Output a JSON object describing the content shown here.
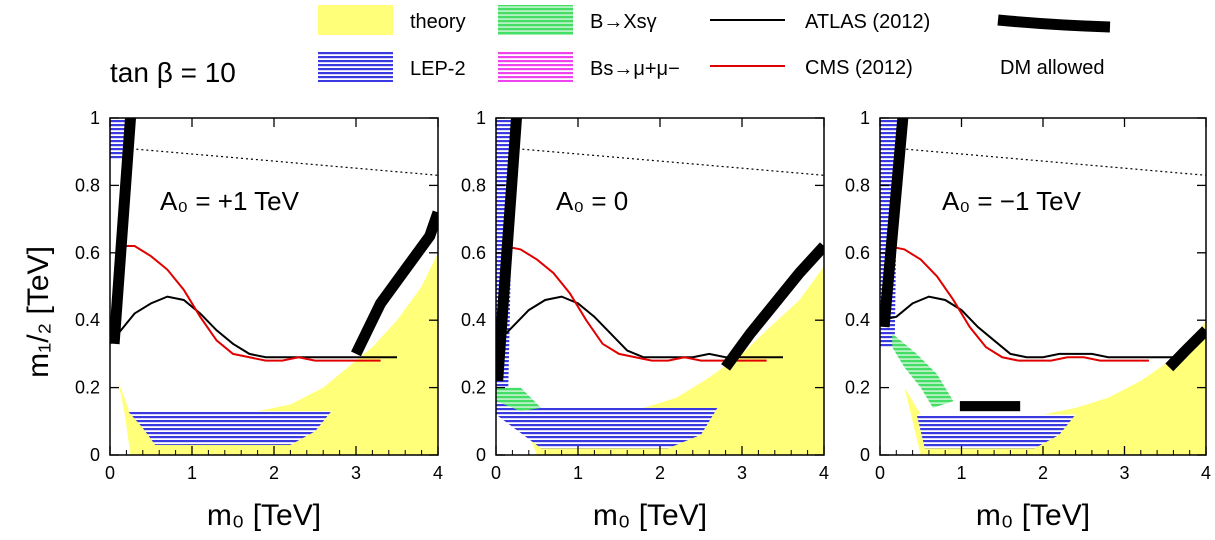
{
  "figure": {
    "tan_beta_label": "tan β = 10",
    "legend": [
      {
        "label": "theory",
        "kind": "fill",
        "color": "#ffff7a",
        "hatch": false
      },
      {
        "label": "LEP-2",
        "kind": "fill",
        "color": "#3a3ae0",
        "hatch": true
      },
      {
        "label": "B→Xsγ",
        "kind": "fill",
        "color": "#44dd66",
        "hatch": true
      },
      {
        "label": "Bs→μ+μ−",
        "kind": "fill",
        "color": "#ee44ee",
        "hatch": true
      },
      {
        "label": "ATLAS (2012)",
        "kind": "line",
        "color": "#000000"
      },
      {
        "label": "CMS (2012)",
        "kind": "line",
        "color": "#e00000"
      },
      {
        "label": "DM allowed",
        "kind": "thick",
        "color": "#000000"
      }
    ],
    "colors": {
      "theory": "#ffff7a",
      "lep": "#3a3ae0",
      "bsg": "#44dd66",
      "bsmumu": "#ee44ee",
      "atlas": "#000000",
      "cms": "#e00000",
      "dm": "#000000"
    }
  },
  "chart_data": [
    {
      "type": "area",
      "panel_label": "A₀ = +1 TeV",
      "xlabel": "m₀ [TeV]",
      "ylabel": "m₁/₂ [TeV]",
      "xlim": [
        0,
        4
      ],
      "ylim": [
        0,
        1
      ],
      "xticks": [
        "0",
        "1",
        "2",
        "3",
        "4"
      ],
      "yticks": [
        "0",
        "0.2",
        "0.4",
        "0.6",
        "0.8",
        "1"
      ],
      "theory_boundary": [
        [
          0,
          0.28
        ],
        [
          0.1,
          0.22
        ],
        [
          0.18,
          0.12
        ],
        [
          0.25,
          0
        ],
        [
          4,
          0
        ],
        [
          4,
          0.6
        ],
        [
          3.8,
          0.5
        ],
        [
          3.5,
          0.4
        ],
        [
          3.2,
          0.32
        ],
        [
          3,
          0.28
        ],
        [
          2.6,
          0.2
        ],
        [
          2.2,
          0.15
        ],
        [
          1.8,
          0.13
        ],
        [
          0.25,
          0.12
        ],
        [
          0.1,
          0.22
        ],
        [
          0,
          0.28
        ]
      ],
      "lep_region": [
        [
          0,
          0.88
        ],
        [
          0,
          1
        ],
        [
          0.25,
          1
        ],
        [
          0.22,
          0.88
        ]
      ],
      "lep_bottom": [
        [
          0.22,
          0.13
        ],
        [
          2.7,
          0.13
        ],
        [
          2.5,
          0.07
        ],
        [
          2.2,
          0.03
        ],
        [
          0.55,
          0.03
        ],
        [
          0.4,
          0.08
        ]
      ],
      "bsg_region": [],
      "atlas": {
        "x": [
          0,
          0.1,
          0.3,
          0.5,
          0.7,
          0.9,
          1.1,
          1.3,
          1.5,
          1.7,
          1.9,
          2.1,
          2.3,
          2.5,
          2.7,
          3,
          3.2,
          3.5
        ],
        "y": [
          0.33,
          0.36,
          0.42,
          0.45,
          0.47,
          0.46,
          0.42,
          0.37,
          0.33,
          0.3,
          0.29,
          0.29,
          0.29,
          0.29,
          0.29,
          0.29,
          0.29,
          0.29
        ]
      },
      "cms": {
        "x": [
          0.1,
          0.3,
          0.5,
          0.7,
          0.9,
          1.1,
          1.3,
          1.5,
          1.7,
          1.9,
          2.1,
          2.3,
          2.5,
          2.7,
          3,
          3.3
        ],
        "y": [
          0.62,
          0.62,
          0.59,
          0.55,
          0.49,
          0.41,
          0.34,
          0.3,
          0.29,
          0.28,
          0.28,
          0.29,
          0.28,
          0.28,
          0.28,
          0.28
        ]
      },
      "dm": [
        {
          "x": [
            0.05,
            0.25
          ],
          "y": [
            0.33,
            1.0
          ]
        },
        {
          "x": [
            3.0,
            3.3,
            3.6,
            3.9,
            4.0
          ],
          "y": [
            0.3,
            0.45,
            0.55,
            0.65,
            0.72
          ]
        }
      ],
      "dm_rects": [],
      "dotted": {
        "x": [
          0.2,
          4
        ],
        "y": [
          0.91,
          0.83
        ]
      }
    },
    {
      "type": "area",
      "panel_label": "A₀ = 0",
      "xlabel": "m₀ [TeV]",
      "ylabel": "",
      "xlim": [
        0,
        4
      ],
      "ylim": [
        0,
        1
      ],
      "xticks": [
        "0",
        "1",
        "2",
        "3",
        "4"
      ],
      "yticks": [
        "0",
        "0.2",
        "0.4",
        "0.6",
        "0.8",
        "1"
      ],
      "theory_boundary": [
        [
          0,
          0.2
        ],
        [
          0.3,
          0.12
        ],
        [
          0.5,
          0
        ],
        [
          4,
          0
        ],
        [
          4,
          0.56
        ],
        [
          3.7,
          0.46
        ],
        [
          3.3,
          0.37
        ],
        [
          3,
          0.3
        ],
        [
          2.6,
          0.23
        ],
        [
          2.2,
          0.17
        ],
        [
          1.8,
          0.14
        ],
        [
          0.4,
          0.12
        ],
        [
          0,
          0.2
        ]
      ],
      "lep_region": [
        [
          0,
          0.2
        ],
        [
          0,
          1
        ],
        [
          0.22,
          1
        ],
        [
          0.15,
          0.2
        ]
      ],
      "lep_bottom": [
        [
          0,
          0.2
        ],
        [
          0.5,
          0.14
        ],
        [
          2.7,
          0.14
        ],
        [
          2.5,
          0.06
        ],
        [
          2.1,
          0.02
        ],
        [
          0.55,
          0.02
        ],
        [
          0,
          0.12
        ]
      ],
      "bsg_region": [
        [
          0,
          0.16
        ],
        [
          0,
          0.2
        ],
        [
          0.3,
          0.2
        ],
        [
          0.55,
          0.14
        ],
        [
          0.3,
          0.13
        ]
      ],
      "atlas": {
        "x": [
          0,
          0.2,
          0.4,
          0.6,
          0.8,
          1,
          1.2,
          1.4,
          1.6,
          1.8,
          2,
          2.2,
          2.4,
          2.6,
          2.8,
          3,
          3.3,
          3.5
        ],
        "y": [
          0.33,
          0.38,
          0.43,
          0.46,
          0.47,
          0.45,
          0.41,
          0.36,
          0.31,
          0.29,
          0.29,
          0.29,
          0.29,
          0.3,
          0.29,
          0.29,
          0.29,
          0.29
        ]
      },
      "cms": {
        "x": [
          0.1,
          0.3,
          0.5,
          0.7,
          0.9,
          1.1,
          1.3,
          1.5,
          1.7,
          1.9,
          2.1,
          2.3,
          2.5,
          2.7,
          3,
          3.3
        ],
        "y": [
          0.62,
          0.61,
          0.58,
          0.54,
          0.48,
          0.4,
          0.33,
          0.3,
          0.29,
          0.28,
          0.28,
          0.29,
          0.28,
          0.28,
          0.28,
          0.28
        ]
      },
      "dm": [
        {
          "x": [
            0.02,
            0.25
          ],
          "y": [
            0.22,
            1.0
          ]
        },
        {
          "x": [
            2.8,
            3.1,
            3.4,
            3.7,
            4.0
          ],
          "y": [
            0.26,
            0.36,
            0.45,
            0.54,
            0.62
          ]
        }
      ],
      "dm_rects": [],
      "dotted": {
        "x": [
          0.2,
          4
        ],
        "y": [
          0.91,
          0.83
        ]
      }
    },
    {
      "type": "area",
      "panel_label": "A₀ = −1 TeV",
      "xlabel": "m₀ [TeV]",
      "ylabel": "",
      "xlim": [
        0,
        4
      ],
      "ylim": [
        0,
        1
      ],
      "xticks": [
        "0",
        "1",
        "2",
        "3",
        "4"
      ],
      "yticks": [
        "0",
        "0.2",
        "0.4",
        "0.6",
        "0.8",
        "1"
      ],
      "theory_boundary": [
        [
          0,
          0.3
        ],
        [
          0.3,
          0.2
        ],
        [
          0.5,
          0
        ],
        [
          4,
          0
        ],
        [
          4,
          0.4
        ],
        [
          3.8,
          0.33
        ],
        [
          3.5,
          0.27
        ],
        [
          3.2,
          0.22
        ],
        [
          2.8,
          0.17
        ],
        [
          2.4,
          0.14
        ],
        [
          2,
          0.12
        ],
        [
          0.5,
          0.12
        ],
        [
          0.3,
          0.2
        ],
        [
          0,
          0.3
        ]
      ],
      "lep_region": [
        [
          0,
          0.32
        ],
        [
          0,
          1
        ],
        [
          0.22,
          1
        ],
        [
          0.18,
          0.32
        ]
      ],
      "lep_bottom": [
        [
          0.45,
          0.12
        ],
        [
          2.4,
          0.12
        ],
        [
          2.2,
          0.06
        ],
        [
          1.9,
          0.02
        ],
        [
          0.55,
          0.02
        ]
      ],
      "bsg_region": [
        [
          0.15,
          0.36
        ],
        [
          0.45,
          0.3
        ],
        [
          0.7,
          0.24
        ],
        [
          0.9,
          0.16
        ],
        [
          0.65,
          0.14
        ],
        [
          0.5,
          0.2
        ],
        [
          0.3,
          0.26
        ],
        [
          0.15,
          0.32
        ]
      ],
      "atlas": {
        "x": [
          0,
          0.2,
          0.4,
          0.6,
          0.8,
          1,
          1.2,
          1.4,
          1.6,
          1.8,
          2,
          2.2,
          2.4,
          2.6,
          2.8,
          3,
          3.3,
          3.6
        ],
        "y": [
          0.4,
          0.41,
          0.45,
          0.47,
          0.46,
          0.43,
          0.38,
          0.34,
          0.3,
          0.29,
          0.29,
          0.3,
          0.3,
          0.3,
          0.29,
          0.29,
          0.29,
          0.29
        ]
      },
      "cms": {
        "x": [
          0.1,
          0.3,
          0.5,
          0.7,
          0.9,
          1.1,
          1.3,
          1.5,
          1.7,
          1.9,
          2.1,
          2.3,
          2.5,
          2.7,
          3,
          3.3
        ],
        "y": [
          0.62,
          0.61,
          0.58,
          0.53,
          0.46,
          0.38,
          0.32,
          0.29,
          0.28,
          0.28,
          0.28,
          0.29,
          0.29,
          0.28,
          0.28,
          0.28
        ]
      },
      "dm": [
        {
          "x": [
            0.05,
            0.28
          ],
          "y": [
            0.38,
            1.0
          ]
        },
        {
          "x": [
            3.55,
            3.75,
            4.0
          ],
          "y": [
            0.26,
            0.31,
            0.37
          ]
        }
      ],
      "dm_rects": [
        {
          "x0": 0.98,
          "x1": 1.72,
          "y0": 0.13,
          "y1": 0.16
        }
      ],
      "dotted": {
        "x": [
          0.2,
          4
        ],
        "y": [
          0.91,
          0.83
        ]
      }
    }
  ]
}
